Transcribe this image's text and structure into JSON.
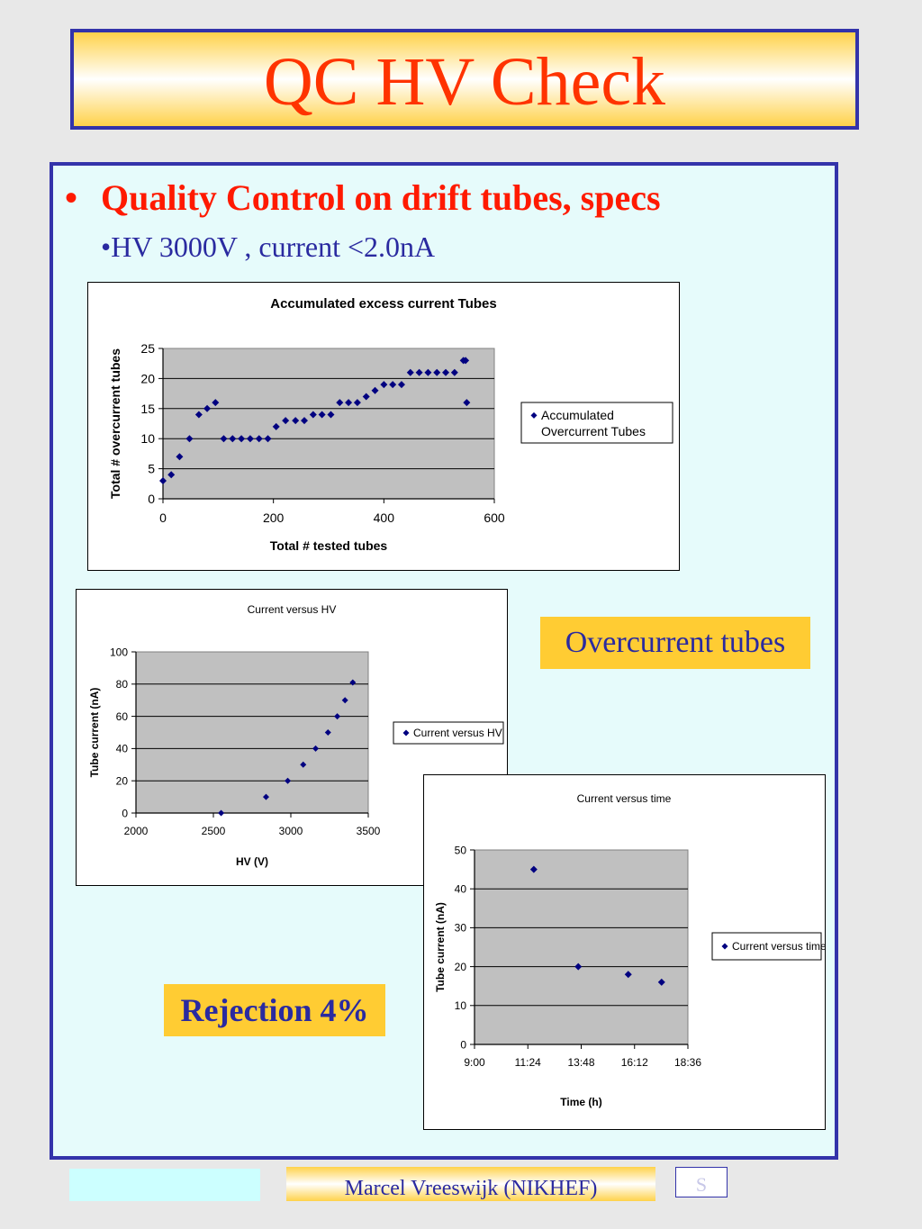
{
  "slide": {
    "title": "QC HV Check",
    "bullet_main": "Quality Control on drift tubes, specs",
    "bullet_symbol": "•",
    "bullet_sub": "•HV 3000V , current <2.0nA",
    "callout_overcurrent": "Overcurrent tubes",
    "callout_rejection": "Rejection 4%",
    "footer_author": "Marcel Vreeswijk (NIKHEF)",
    "footer_page": "S"
  },
  "colors": {
    "title_red": "#ff3300",
    "bullet_red": "#ff1a00",
    "text_blue": "#2a2aa0",
    "border_blue": "#3333aa",
    "callout_yellow": "#ffcc33",
    "plot_gray": "#c0c0c0",
    "marker_navy": "#000080",
    "content_bg": "#e6fbfb"
  },
  "chart_data": [
    {
      "type": "scatter",
      "title": "Accumulated excess current Tubes",
      "xlabel": "Total # tested tubes",
      "ylabel": "Total # overcurrent tubes",
      "xlim": [
        0,
        600
      ],
      "ylim": [
        0,
        25
      ],
      "xticks": [
        0,
        200,
        400,
        600
      ],
      "yticks": [
        0,
        5,
        10,
        15,
        20,
        25
      ],
      "xtick_labels": [
        "0",
        "200",
        "400",
        "600"
      ],
      "ytick_labels": [
        "0",
        "5",
        "10",
        "15",
        "20",
        "25"
      ],
      "grid": "horizontal",
      "legend_position": "right",
      "series": [
        {
          "name": "Accumulated Overcurrent Tubes",
          "legend_lines": [
            "Accumulated",
            "Overcurrent Tubes"
          ],
          "x": [
            0,
            15,
            30,
            48,
            65,
            80,
            95,
            110,
            126,
            142,
            158,
            174,
            190,
            205,
            222,
            240,
            256,
            272,
            288,
            304,
            320,
            336,
            352,
            368,
            384,
            400,
            416,
            432,
            448,
            464,
            480,
            496,
            512,
            528,
            544,
            548,
            550
          ],
          "y": [
            3,
            4,
            7,
            10,
            14,
            15,
            16,
            10,
            10,
            10,
            10,
            10,
            10,
            12,
            13,
            13,
            13,
            14,
            14,
            14,
            16,
            16,
            16,
            17,
            18,
            19,
            19,
            19,
            21,
            21,
            21,
            21,
            21,
            21,
            23,
            23,
            16
          ]
        }
      ]
    },
    {
      "type": "scatter",
      "title": "Current versus HV",
      "xlabel": "HV (V)",
      "ylabel": "Tube current (nA)",
      "xlim": [
        2000,
        3500
      ],
      "ylim": [
        0,
        100
      ],
      "xticks": [
        2000,
        2500,
        3000,
        3500
      ],
      "yticks": [
        0,
        20,
        40,
        60,
        80,
        100
      ],
      "xtick_labels": [
        "2000",
        "2500",
        "3000",
        "3500"
      ],
      "ytick_labels": [
        "0",
        "20",
        "40",
        "60",
        "80",
        "100"
      ],
      "grid": "horizontal",
      "legend_position": "right",
      "series": [
        {
          "name": "Current versus HV",
          "legend_lines": [
            "Current versus HV"
          ],
          "x": [
            2550,
            2840,
            2980,
            3080,
            3160,
            3240,
            3300,
            3350,
            3400
          ],
          "y": [
            0,
            10,
            20,
            30,
            40,
            50,
            60,
            70,
            81
          ]
        }
      ]
    },
    {
      "type": "scatter",
      "title": "Current versus time",
      "xlabel": "Time (h)",
      "ylabel": "Tube current (nA)",
      "xlim": [
        "9:00",
        "18:36"
      ],
      "ylim": [
        0,
        50
      ],
      "xticks": [
        "9:00",
        "11:24",
        "13:48",
        "16:12",
        "18:36"
      ],
      "yticks": [
        0,
        10,
        20,
        30,
        40,
        50
      ],
      "xtick_labels": [
        "9:00",
        "11:24",
        "13:48",
        "16:12",
        "18:36"
      ],
      "ytick_labels": [
        "0",
        "10",
        "20",
        "30",
        "40",
        "50"
      ],
      "grid": "horizontal",
      "legend_position": "right",
      "series": [
        {
          "name": "Current versus time",
          "legend_lines": [
            "Current versus time"
          ],
          "x": [
            "11:40",
            "13:40",
            "15:55",
            "17:25"
          ],
          "y": [
            45,
            20,
            18,
            16
          ]
        }
      ]
    }
  ]
}
